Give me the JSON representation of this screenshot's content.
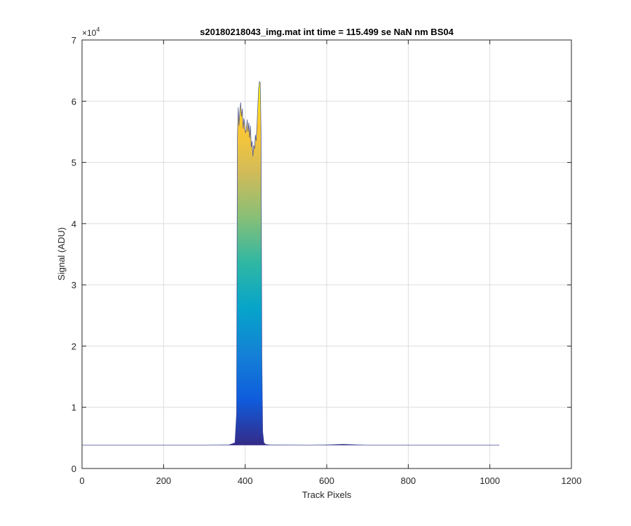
{
  "chart_data": {
    "type": "area",
    "title": "s20180218043_img.mat int time = 115.499 se  NaN nm BS04",
    "xlabel": "Track Pixels",
    "ylabel": "Signal (ADU)",
    "y_multiplier": "×10",
    "y_multiplier_exponent": "4",
    "xlim": [
      0,
      1200
    ],
    "ylim": [
      0,
      70000
    ],
    "xticks": [
      0,
      200,
      400,
      600,
      800,
      1000,
      1200
    ],
    "yticks": [
      0,
      10000,
      20000,
      30000,
      40000,
      50000,
      60000,
      70000
    ],
    "xtick_labels": [
      "0",
      "200",
      "400",
      "600",
      "800",
      "1000",
      "1200"
    ],
    "ytick_labels": [
      "0",
      "1",
      "2",
      "3",
      "4",
      "5",
      "6",
      "7"
    ],
    "grid": true,
    "colormap": "parula",
    "colormap_stops": [
      "#352a87",
      "#0f5cdd",
      "#1481d6",
      "#06a4ca",
      "#2eb7a4",
      "#87bf77",
      "#d1bb59",
      "#fec832",
      "#f9fb0e"
    ],
    "series": [
      {
        "x": [
          0,
          300,
          360,
          375,
          379,
          381,
          383,
          385,
          387,
          389,
          391,
          393,
          395,
          397,
          399,
          401,
          403,
          405,
          407,
          409,
          411,
          413,
          415,
          417,
          419,
          421,
          423,
          425,
          427,
          429,
          431,
          433,
          435,
          437,
          439,
          441,
          443,
          446,
          450,
          460,
          560,
          600,
          620,
          640,
          660,
          680,
          700,
          800,
          900,
          1023
        ],
        "y": [
          3800,
          3800,
          3850,
          4200,
          9000,
          54000,
          59000,
          56000,
          58500,
          59800,
          57500,
          58800,
          55500,
          57200,
          56000,
          54800,
          55500,
          57000,
          55000,
          56500,
          54000,
          56000,
          52500,
          53500,
          51000,
          52800,
          52200,
          54500,
          53500,
          56000,
          59000,
          62000,
          63200,
          63000,
          55000,
          18000,
          6000,
          4200,
          3950,
          3850,
          3800,
          3850,
          3900,
          3950,
          3900,
          3850,
          3800,
          3800,
          3800,
          3800
        ]
      }
    ]
  }
}
